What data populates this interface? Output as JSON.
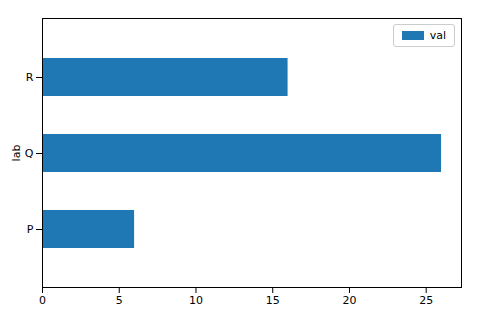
{
  "chart_data": {
    "type": "bar",
    "orientation": "horizontal",
    "ylabel": "lab",
    "categories": [
      "P",
      "Q",
      "R"
    ],
    "series": [
      {
        "name": "val",
        "color": "#1f77b4",
        "values": [
          6,
          26,
          16
        ]
      }
    ],
    "xlim": [
      0,
      27.3
    ],
    "xticks": [
      0,
      5,
      10,
      15,
      20,
      25
    ],
    "grid": false,
    "legend": "upper right"
  }
}
